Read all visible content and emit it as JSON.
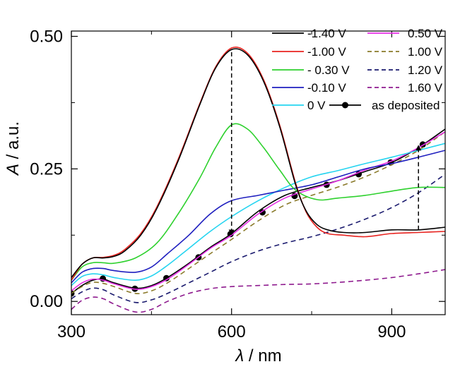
{
  "chart_data": {
    "type": "line",
    "title": "",
    "xlabel": {
      "italic": "λ",
      "rest": " / nm"
    },
    "ylabel": {
      "italic": "A",
      "rest": " / a.u."
    },
    "xlim": [
      300,
      1000
    ],
    "ylim": [
      -0.025,
      0.51
    ],
    "xticks": [
      300,
      600,
      900
    ],
    "xtick_labels": [
      "300",
      "600",
      "900"
    ],
    "yticks": [
      0.0,
      0.25,
      0.5
    ],
    "ytick_labels": [
      "0.00",
      "0.25",
      "0.50"
    ],
    "grid": false,
    "legend_placement": "top-right",
    "series": [
      {
        "name": "-1.40 V",
        "color": "#000000",
        "style": "solid",
        "x": [
          300,
          320,
          340,
          360,
          380,
          400,
          430,
          460,
          500,
          540,
          570,
          600,
          630,
          660,
          690,
          720,
          740,
          760,
          780,
          810,
          850,
          900,
          950,
          1000
        ],
        "y": [
          0.045,
          0.07,
          0.082,
          0.082,
          0.085,
          0.095,
          0.125,
          0.175,
          0.265,
          0.37,
          0.44,
          0.475,
          0.465,
          0.415,
          0.33,
          0.22,
          0.17,
          0.145,
          0.135,
          0.13,
          0.13,
          0.135,
          0.135,
          0.14
        ]
      },
      {
        "name": "-1.00 V",
        "color": "#e8231f",
        "style": "solid",
        "x": [
          300,
          320,
          340,
          360,
          380,
          400,
          430,
          460,
          500,
          540,
          570,
          600,
          630,
          660,
          690,
          720,
          740,
          760,
          780,
          810,
          850,
          900,
          950,
          1000
        ],
        "y": [
          0.04,
          0.07,
          0.082,
          0.083,
          0.087,
          0.098,
          0.128,
          0.178,
          0.268,
          0.372,
          0.442,
          0.478,
          0.468,
          0.418,
          0.333,
          0.223,
          0.168,
          0.14,
          0.128,
          0.125,
          0.122,
          0.128,
          0.13,
          0.132
        ]
      },
      {
        "name": "- 0.30 V",
        "color": "#2ed12e",
        "style": "solid",
        "x": [
          300,
          320,
          340,
          360,
          380,
          420,
          460,
          500,
          540,
          570,
          600,
          630,
          660,
          690,
          720,
          760,
          800,
          850,
          900,
          950,
          1000
        ],
        "y": [
          0.04,
          0.065,
          0.073,
          0.073,
          0.072,
          0.082,
          0.11,
          0.165,
          0.232,
          0.29,
          0.333,
          0.325,
          0.29,
          0.248,
          0.21,
          0.192,
          0.195,
          0.2,
          0.208,
          0.215,
          0.215
        ]
      },
      {
        "name": "-0.10 V",
        "color": "#1f1fbf",
        "style": "solid",
        "x": [
          300,
          320,
          340,
          360,
          380,
          420,
          450,
          480,
          520,
          560,
          600,
          650,
          700,
          750,
          800,
          850,
          900,
          950,
          1000
        ],
        "y": [
          0.035,
          0.055,
          0.062,
          0.062,
          0.058,
          0.055,
          0.065,
          0.09,
          0.125,
          0.165,
          0.19,
          0.2,
          0.21,
          0.22,
          0.235,
          0.25,
          0.26,
          0.272,
          0.285
        ]
      },
      {
        "name": "0 V",
        "color": "#25d4f0",
        "style": "solid",
        "x": [
          300,
          320,
          340,
          360,
          380,
          420,
          450,
          480,
          520,
          560,
          600,
          650,
          700,
          750,
          800,
          850,
          900,
          950,
          1000
        ],
        "y": [
          0.03,
          0.047,
          0.052,
          0.05,
          0.045,
          0.04,
          0.048,
          0.068,
          0.1,
          0.132,
          0.16,
          0.19,
          0.215,
          0.235,
          0.247,
          0.26,
          0.272,
          0.285,
          0.298
        ]
      },
      {
        "name": "0.50 V",
        "color": "#e62ee6",
        "style": "solid",
        "x": [
          300,
          320,
          340,
          360,
          380,
          420,
          450,
          480,
          520,
          560,
          600,
          650,
          700,
          750,
          800,
          850,
          900,
          950,
          1000
        ],
        "y": [
          0.02,
          0.035,
          0.042,
          0.04,
          0.033,
          0.023,
          0.028,
          0.042,
          0.07,
          0.1,
          0.125,
          0.165,
          0.195,
          0.212,
          0.228,
          0.248,
          0.265,
          0.29,
          0.32
        ]
      },
      {
        "name": "1.00 V",
        "color": "#8a7a2a",
        "style": "dash",
        "x": [
          300,
          320,
          340,
          360,
          380,
          420,
          450,
          480,
          520,
          560,
          600,
          650,
          700,
          750,
          800,
          850,
          900,
          950,
          1000
        ],
        "y": [
          0.015,
          0.028,
          0.036,
          0.034,
          0.028,
          0.015,
          0.02,
          0.035,
          0.062,
          0.09,
          0.117,
          0.152,
          0.182,
          0.2,
          0.216,
          0.235,
          0.258,
          0.285,
          0.32
        ]
      },
      {
        "name": "1.20 V",
        "color": "#1a1a6e",
        "style": "dash",
        "x": [
          300,
          320,
          340,
          360,
          380,
          420,
          450,
          480,
          520,
          560,
          600,
          650,
          700,
          750,
          800,
          850,
          900,
          950,
          1000
        ],
        "y": [
          0.005,
          0.018,
          0.025,
          0.022,
          0.012,
          -0.002,
          0.003,
          0.015,
          0.035,
          0.055,
          0.075,
          0.095,
          0.11,
          0.122,
          0.137,
          0.155,
          0.177,
          0.205,
          0.24
        ]
      },
      {
        "name": "1.60 V",
        "color": "#8e1a8e",
        "style": "dash",
        "x": [
          300,
          320,
          340,
          360,
          380,
          420,
          450,
          480,
          520,
          560,
          600,
          650,
          700,
          750,
          800,
          850,
          900,
          950,
          1000
        ],
        "y": [
          -0.015,
          0.002,
          0.008,
          0.005,
          -0.005,
          -0.02,
          -0.015,
          0.0,
          0.015,
          0.024,
          0.028,
          0.03,
          0.032,
          0.033,
          0.036,
          0.04,
          0.045,
          0.052,
          0.06
        ]
      },
      {
        "name": "as deposited",
        "color": "#000000",
        "style": "solid",
        "markers": true,
        "x": [
          300,
          320,
          340,
          360,
          380,
          420,
          450,
          480,
          520,
          560,
          600,
          650,
          700,
          750,
          800,
          850,
          900,
          950,
          1000
        ],
        "y": [
          0.015,
          0.03,
          0.04,
          0.042,
          0.035,
          0.025,
          0.03,
          0.045,
          0.072,
          0.102,
          0.128,
          0.17,
          0.2,
          0.215,
          0.228,
          0.245,
          0.262,
          0.29,
          0.325
        ],
        "marker_x": [
          300,
          359,
          419,
          478,
          538,
          598,
          658,
          718,
          778,
          838,
          898,
          958
        ],
        "marker_y": [
          0.015,
          0.043,
          0.024,
          0.044,
          0.083,
          0.127,
          0.168,
          0.199,
          0.22,
          0.24,
          0.262,
          0.296
        ]
      }
    ],
    "arrows": [
      {
        "x": 600,
        "y_from": 0.47,
        "y_to": 0.13,
        "direction": "down"
      },
      {
        "x": 950,
        "y_from": 0.135,
        "y_to": 0.29,
        "direction": "up"
      }
    ]
  }
}
